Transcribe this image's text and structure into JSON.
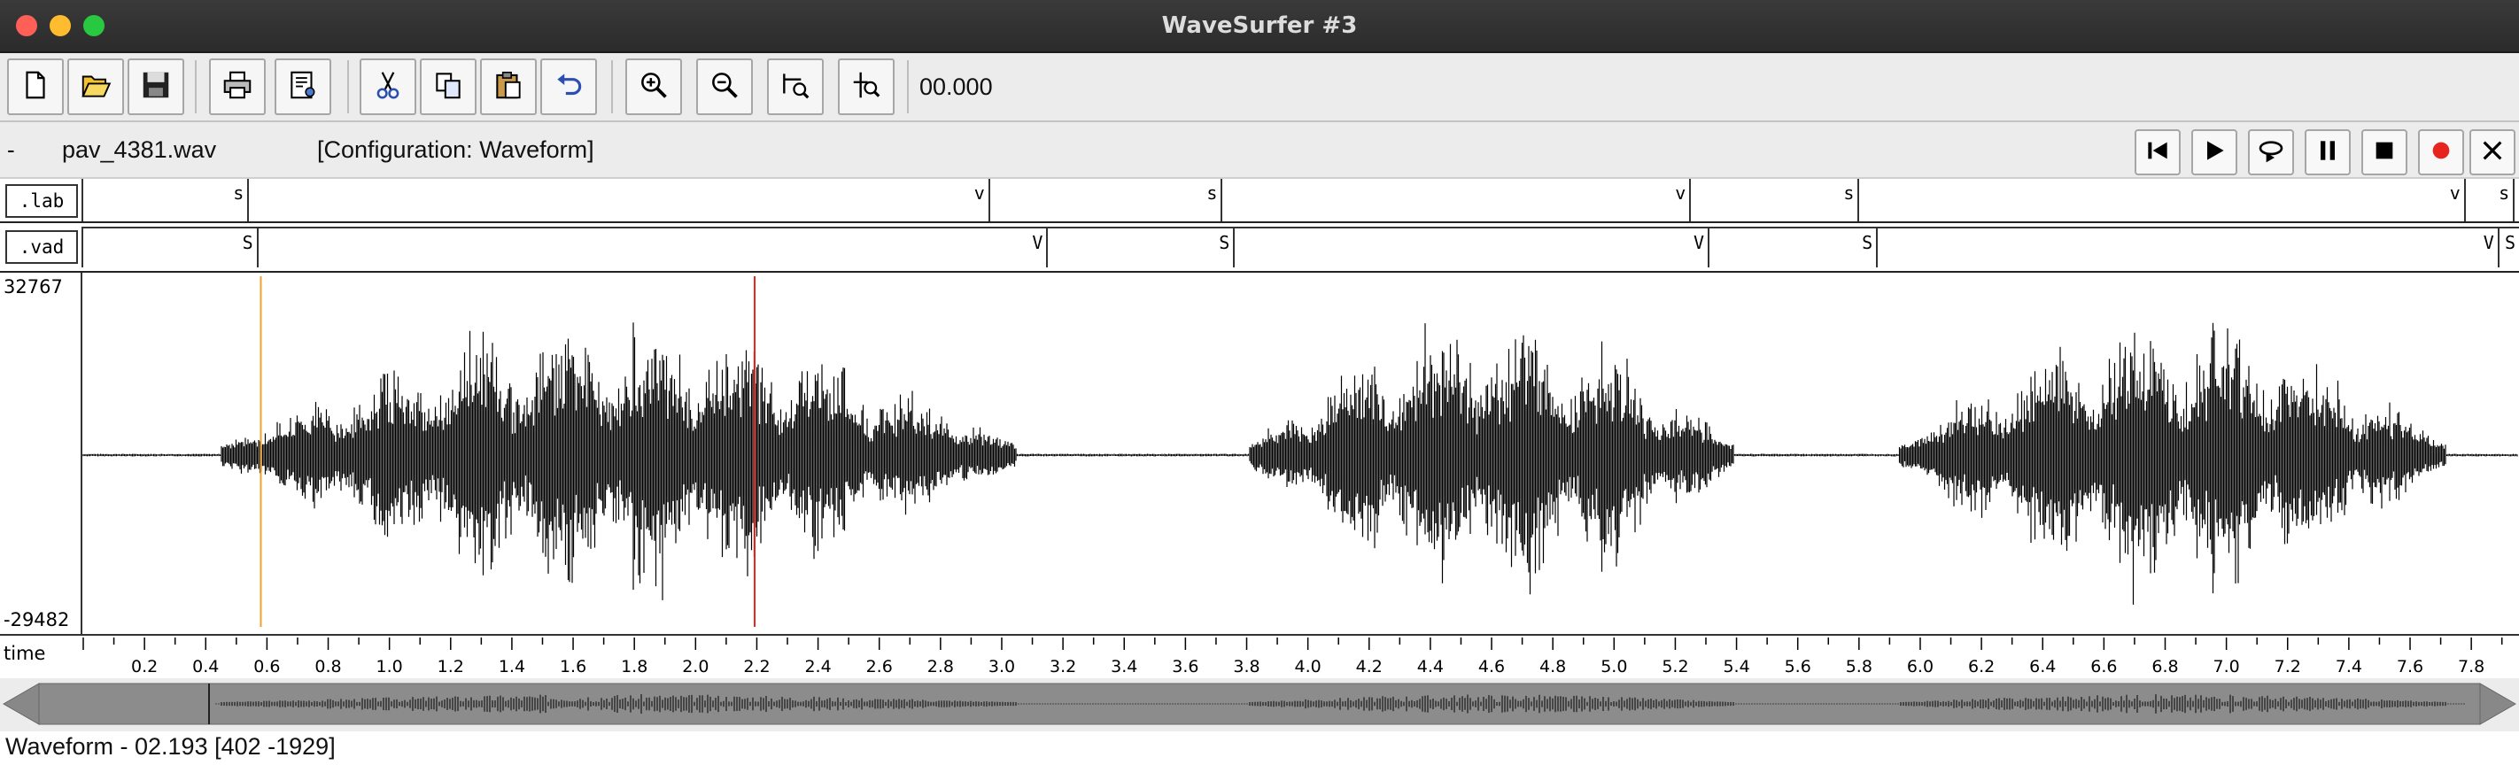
{
  "window": {
    "title": "WaveSurfer #3"
  },
  "toolbar": {
    "buttons": [
      {
        "name": "new-file-button",
        "icon": "new-file-icon"
      },
      {
        "name": "open-file-button",
        "icon": "folder-open-icon"
      },
      {
        "name": "save-button",
        "icon": "floppy-disk-icon"
      },
      {
        "name": "print-button",
        "icon": "printer-icon"
      },
      {
        "name": "properties-button",
        "icon": "properties-icon"
      },
      {
        "name": "cut-button",
        "icon": "scissors-icon"
      },
      {
        "name": "copy-button",
        "icon": "copy-icon"
      },
      {
        "name": "paste-button",
        "icon": "clipboard-icon"
      },
      {
        "name": "undo-button",
        "icon": "undo-icon"
      },
      {
        "name": "zoom-in-button",
        "icon": "zoom-in-icon"
      },
      {
        "name": "zoom-out-button",
        "icon": "zoom-out-icon"
      },
      {
        "name": "zoom-to-selection-button",
        "icon": "zoom-selection-icon"
      },
      {
        "name": "zoom-to-cursor-button",
        "icon": "zoom-cursor-icon"
      }
    ],
    "time_display": "00.000"
  },
  "filebar": {
    "dash": "-",
    "filename": "pav_4381.wav",
    "configuration": "[Configuration: Waveform]",
    "transport": [
      {
        "name": "go-to-start-button",
        "icon": "skip-back-icon"
      },
      {
        "name": "play-button",
        "icon": "play-icon"
      },
      {
        "name": "play-loop-button",
        "icon": "loop-play-icon"
      },
      {
        "name": "pause-button",
        "icon": "pause-icon"
      },
      {
        "name": "stop-button",
        "icon": "stop-icon"
      },
      {
        "name": "record-button",
        "icon": "record-icon"
      },
      {
        "name": "close-sound-button",
        "icon": "close-icon"
      }
    ]
  },
  "tiers": {
    "lab": {
      "label": ".lab",
      "segments": [
        {
          "text": "s",
          "t": 0.53
        },
        {
          "text": "v",
          "t": 2.95
        },
        {
          "text": "s",
          "t": 3.71
        },
        {
          "text": "v",
          "t": 5.24
        },
        {
          "text": "s",
          "t": 5.79
        },
        {
          "text": "v",
          "t": 7.77
        },
        {
          "text": "s",
          "t": 7.93
        }
      ]
    },
    "vad": {
      "label": ".vad",
      "segments": [
        {
          "text": "S",
          "t": 0.56
        },
        {
          "text": "V",
          "t": 3.14
        },
        {
          "text": "S",
          "t": 3.75
        },
        {
          "text": "V",
          "t": 5.3
        },
        {
          "text": "S",
          "t": 5.85
        },
        {
          "text": "V",
          "t": 7.88
        },
        {
          "text": "S",
          "t": 7.95
        }
      ]
    }
  },
  "waveform": {
    "max_label": "32767",
    "min_label": "-29482",
    "cursor_time": 2.193,
    "marker_time": 0.58,
    "speech_regions": [
      [
        0.45,
        3.05
      ],
      [
        3.81,
        5.39
      ],
      [
        5.93,
        7.72
      ]
    ]
  },
  "time_axis": {
    "label": "time",
    "start": 0.0,
    "end": 7.95,
    "tick_labels": [
      "0.2",
      "0.4",
      "0.6",
      "0.8",
      "1.0",
      "1.2",
      "1.4",
      "1.6",
      "1.8",
      "2.0",
      "2.2",
      "2.4",
      "2.6",
      "2.8",
      "3.0",
      "3.2",
      "3.4",
      "3.6",
      "3.8",
      "4.0",
      "4.2",
      "4.4",
      "4.6",
      "4.8",
      "5.0",
      "5.2",
      "5.4",
      "5.6",
      "5.8",
      "6.0",
      "6.2",
      "6.4",
      "6.6",
      "6.8",
      "7.0",
      "7.2",
      "7.4",
      "7.6",
      "7.8"
    ]
  },
  "status": {
    "text": "Waveform - 02.193 [402 -1929]"
  },
  "colors": {
    "cursor": "#e8241e",
    "marker": "#f0a030",
    "record": "#e8241e"
  }
}
